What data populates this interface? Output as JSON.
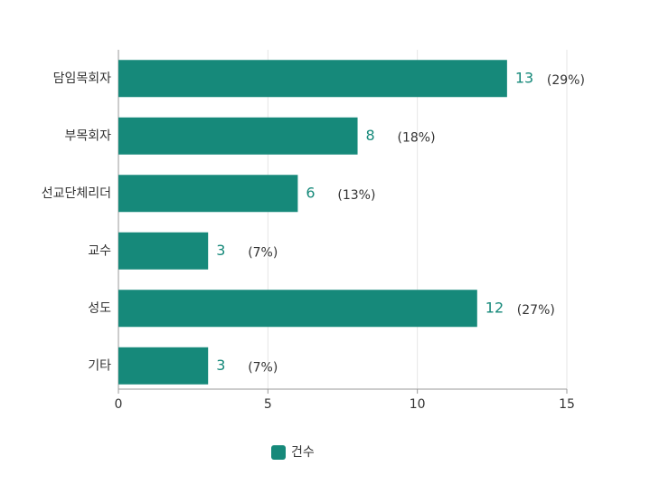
{
  "chart_data": {
    "type": "hbar",
    "categories": [
      "담임목회자",
      "부목회자",
      "선교단체리더",
      "교수",
      "성도",
      "기타"
    ],
    "series": [
      {
        "name": "건수",
        "color": "#16897a",
        "values": [
          13,
          8,
          6,
          3,
          12,
          3
        ]
      }
    ],
    "annotations": [
      "(29%)",
      "(18%)",
      "(13%)",
      "(7%)",
      "(27%)",
      "(7%)"
    ],
    "xlim": [
      0,
      15
    ],
    "xticks": [
      0,
      5,
      10,
      15
    ],
    "grid": true,
    "legend": "bottom"
  }
}
